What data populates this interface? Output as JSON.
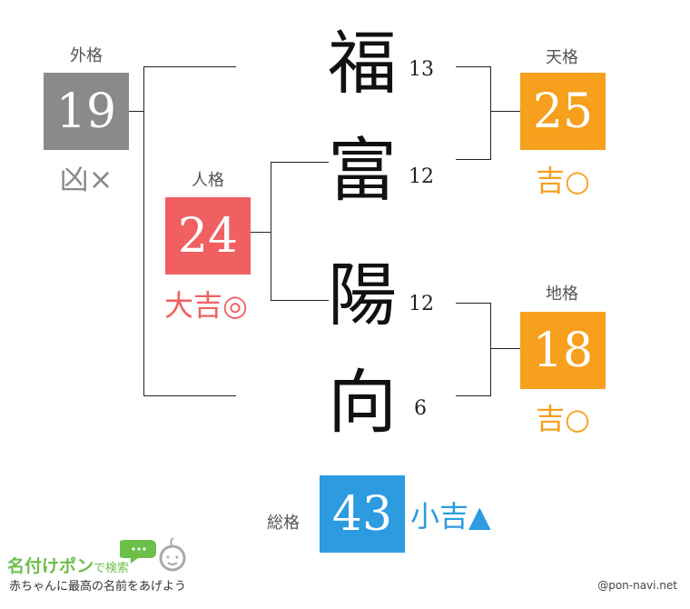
{
  "colors": {
    "gaikaku": "#8a8a8a",
    "jinkaku": "#f06060",
    "tenkaku": "#f7a01e",
    "chikaku": "#f7a01e",
    "soukaku": "#2d9be0"
  },
  "name": {
    "chars": [
      {
        "char": "福",
        "strokes": "13"
      },
      {
        "char": "富",
        "strokes": "12"
      },
      {
        "char": "陽",
        "strokes": "12"
      },
      {
        "char": "向",
        "strokes": "6"
      }
    ]
  },
  "gaikaku": {
    "label": "外格",
    "value": "19",
    "verdict": "凶×"
  },
  "jinkaku": {
    "label": "人格",
    "value": "24",
    "verdict": "大吉◎"
  },
  "tenkaku": {
    "label": "天格",
    "value": "25",
    "verdict": "吉○"
  },
  "chikaku": {
    "label": "地格",
    "value": "18",
    "verdict": "吉○"
  },
  "soukaku": {
    "label": "総格",
    "value": "43",
    "verdict": "小吉▲"
  },
  "footer": {
    "logo_title": "名付けポン",
    "logo_suffix": "で検索",
    "tagline": "赤ちゃんに最高の名前をあげよう",
    "credit": "@pon-navi.net"
  }
}
